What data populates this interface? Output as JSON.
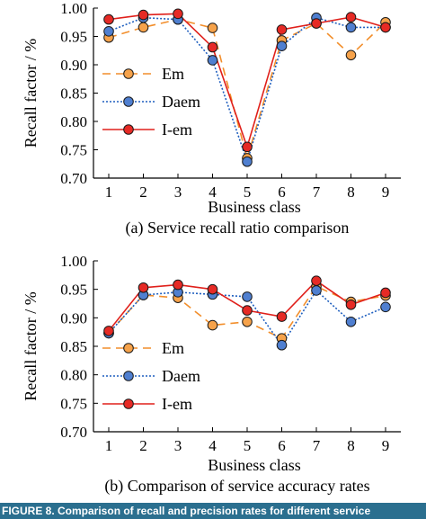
{
  "colors": {
    "em": "#f28e2b",
    "daem": "#1f5fbf",
    "iem": "#e0201b",
    "em_fill": "#f6a24a",
    "daem_fill": "#4f7fd0",
    "iem_fill": "#e62a25",
    "caption_bar": "#2b6f8f"
  },
  "chart_data": [
    {
      "type": "line",
      "caption": "(a) Service recall ratio comparison",
      "xlabel": "Business class",
      "ylabel": "Recall factor / %",
      "x": [
        1,
        2,
        3,
        4,
        5,
        6,
        7,
        8,
        9
      ],
      "ylim": [
        0.7,
        1.0
      ],
      "yticks": [
        "0.70",
        "0.75",
        "0.80",
        "0.85",
        "0.90",
        "0.95",
        "1.00"
      ],
      "xticks": [
        "1",
        "2",
        "3",
        "4",
        "5",
        "6",
        "7",
        "8",
        "9"
      ],
      "legend": "left",
      "series": [
        {
          "name": "Em",
          "style": "dashed",
          "values": [
            0.948,
            0.966,
            0.98,
            0.965,
            0.735,
            0.943,
            0.973,
            0.917,
            0.975
          ]
        },
        {
          "name": "Daem",
          "style": "dotted",
          "values": [
            0.959,
            0.983,
            0.98,
            0.908,
            0.729,
            0.933,
            0.983,
            0.966,
            0.966
          ]
        },
        {
          "name": "I-em",
          "style": "solid",
          "values": [
            0.98,
            0.988,
            0.99,
            0.931,
            0.755,
            0.962,
            0.973,
            0.984,
            0.966
          ]
        }
      ]
    },
    {
      "type": "line",
      "caption": "(b) Comparison of service accuracy rates",
      "xlabel": "Business class",
      "ylabel": "Recall factor / %",
      "x": [
        1,
        2,
        3,
        4,
        5,
        6,
        7,
        8,
        9
      ],
      "ylim": [
        0.7,
        1.0
      ],
      "yticks": [
        "0.70",
        "0.75",
        "0.80",
        "0.85",
        "0.90",
        "0.95",
        "1.00"
      ],
      "xticks": [
        "1",
        "2",
        "3",
        "4",
        "5",
        "6",
        "7",
        "8",
        "9"
      ],
      "legend": "bottom-left",
      "series": [
        {
          "name": "Em",
          "style": "dashed",
          "values": [
            0.873,
            0.94,
            0.935,
            0.887,
            0.893,
            0.864,
            0.955,
            0.928,
            0.939
          ]
        },
        {
          "name": "Daem",
          "style": "dotted",
          "values": [
            0.873,
            0.94,
            0.945,
            0.941,
            0.937,
            0.852,
            0.948,
            0.893,
            0.919
          ]
        },
        {
          "name": "I-em",
          "style": "solid",
          "values": [
            0.877,
            0.953,
            0.958,
            0.95,
            0.913,
            0.902,
            0.965,
            0.923,
            0.944
          ]
        }
      ]
    }
  ],
  "caption_strip": "FIGURE 8. Comparison of recall and precision rates for different service"
}
